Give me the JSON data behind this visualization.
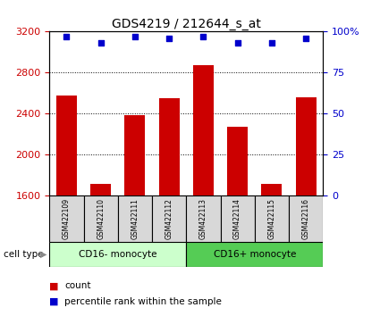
{
  "title": "GDS4219 / 212644_s_at",
  "samples": [
    "GSM422109",
    "GSM422110",
    "GSM422111",
    "GSM422112",
    "GSM422113",
    "GSM422114",
    "GSM422115",
    "GSM422116"
  ],
  "bar_values": [
    2580,
    1720,
    2390,
    2550,
    2870,
    2270,
    1720,
    2560
  ],
  "percentile_values": [
    97,
    93,
    97,
    96,
    97,
    93,
    93,
    96
  ],
  "ylim_left": [
    1600,
    3200
  ],
  "ylim_right": [
    0,
    100
  ],
  "yticks_left": [
    1600,
    2000,
    2400,
    2800,
    3200
  ],
  "yticks_right": [
    0,
    25,
    50,
    75,
    100
  ],
  "bar_color": "#cc0000",
  "dot_color": "#0000cc",
  "group1_label": "CD16- monocyte",
  "group2_label": "CD16+ monocyte",
  "group1_indices": [
    0,
    1,
    2,
    3
  ],
  "group2_indices": [
    4,
    5,
    6,
    7
  ],
  "group1_color": "#ccffcc",
  "group2_color": "#55cc55",
  "legend_count_label": "count",
  "legend_pct_label": "percentile rank within the sample",
  "cell_type_label": "cell type",
  "sample_bg_color": "#d8d8d8",
  "grid_color": "#000000",
  "left_tick_color": "#cc0000",
  "right_tick_color": "#0000cc"
}
